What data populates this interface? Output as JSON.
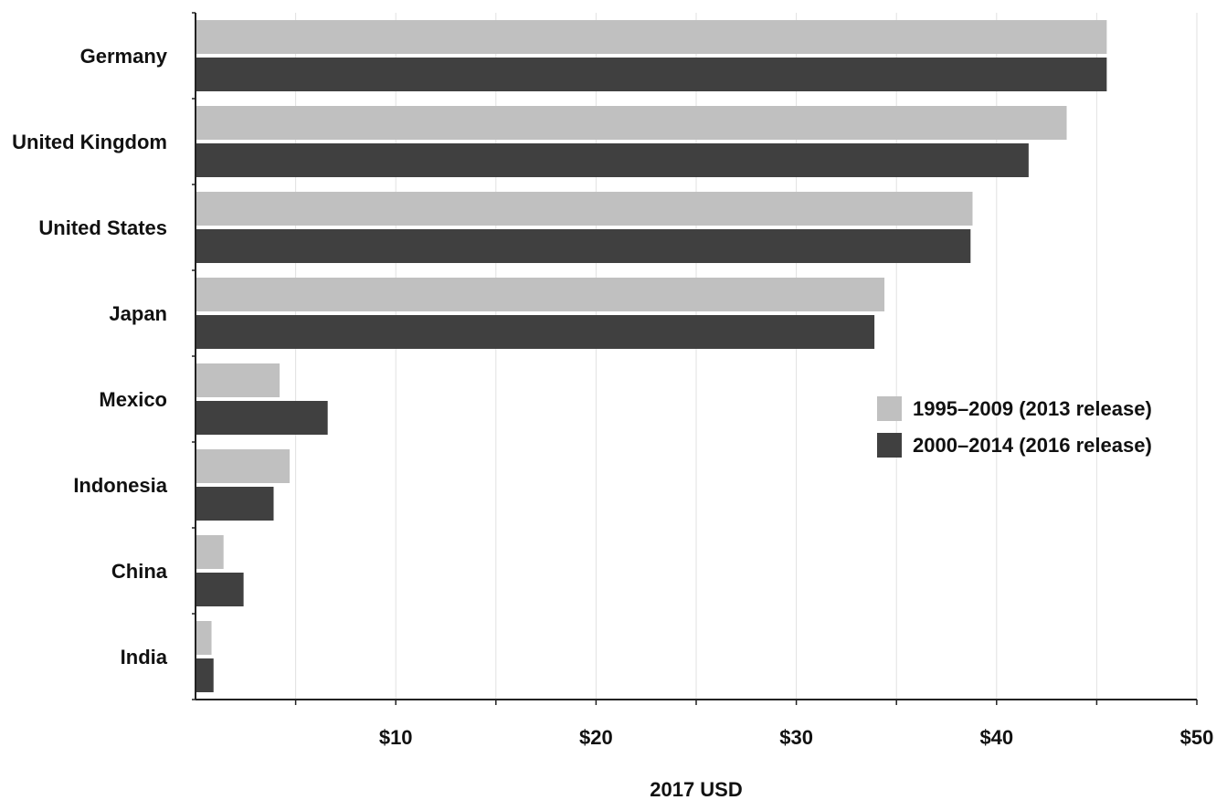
{
  "chart_data": {
    "type": "bar",
    "orientation": "horizontal",
    "categories": [
      "Germany",
      "United Kingdom",
      "United States",
      "Japan",
      "Mexico",
      "Indonesia",
      "China",
      "India"
    ],
    "series": [
      {
        "name": "1995–2009 (2013 release)",
        "color": "#c0c0c0",
        "values": [
          45.5,
          43.5,
          38.8,
          34.4,
          4.2,
          4.7,
          1.4,
          0.8
        ]
      },
      {
        "name": "2000–2014 (2016 release)",
        "color": "#404040",
        "values": [
          45.5,
          41.6,
          38.7,
          33.9,
          6.6,
          3.9,
          2.4,
          0.9
        ]
      }
    ],
    "xlabel": "2017 USD",
    "ylabel": "",
    "title": "",
    "xlim": [
      0,
      50
    ],
    "x_ticks": [
      10,
      20,
      30,
      40,
      50
    ],
    "x_tick_labels": [
      "$10",
      "$20",
      "$30",
      "$40",
      "$50"
    ],
    "grid": "vertical",
    "legend_position": "right-middle"
  }
}
